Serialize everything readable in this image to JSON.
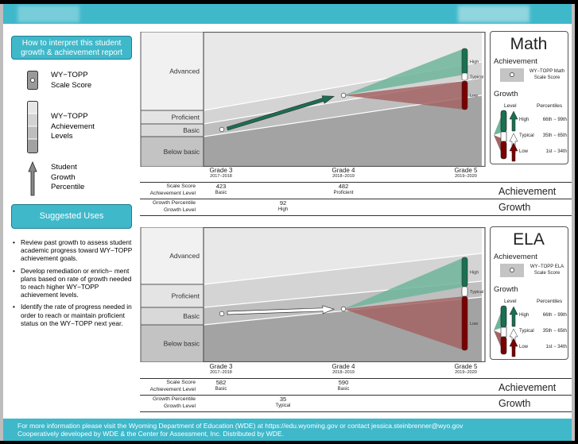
{
  "footer": {
    "line1": "For more information please visit the Wyoming Department of Education (WDE) at https://edu.wyoming.gov or contact jessica.steinbrenner@wyo.gov",
    "line2": "Cooperatively developed by WDE & the Center for Assessment, Inc. Distributed by WDE."
  },
  "sidebar": {
    "howto_title": "How to interpret this student growth & achievement report",
    "legend": [
      {
        "icon": "scale-score-icon",
        "label": "WY−TOPP\nScale Score"
      },
      {
        "icon": "achievement-levels-icon",
        "label": "WY−TOPP\nAchievement\nLevels"
      },
      {
        "icon": "growth-arrow-icon",
        "label": "Student\nGrowth\nPercentile"
      }
    ],
    "uses_title": "Suggested Uses",
    "bullets": [
      "Review past growth to assess student academic progress toward WY−TOPP achievement goals.",
      "Develop remediation or enrich− ment plans based on rate of growth needed to reach higher WY−TOPP achievement levels.",
      "Identify the rate of progress needed in order to reach or maintain proficient status on the WY−TOPP next year."
    ]
  },
  "colors": {
    "teal": "#3fb8ca",
    "high": "#1a7050",
    "low": "#7a0000",
    "high_fan": "#6fb59a",
    "low_fan": "#a56464"
  },
  "table_labels": {
    "scale_score": "Scale Score",
    "achievement_level": "Achievement Level",
    "growth_percentile": "Growth Percentile",
    "growth_level": "Growth Level",
    "achievement": "Achievement",
    "growth": "Growth"
  },
  "key_common": {
    "achievement": "Achievement",
    "growth": "Growth",
    "level": "Level",
    "percentiles": "Percentiles",
    "levels": [
      {
        "name": "High",
        "range": "66th − 99th"
      },
      {
        "name": "Typical",
        "range": "35th − 65th"
      },
      {
        "name": "Low",
        "range": "1st − 34th"
      }
    ]
  },
  "chart_data": [
    {
      "type": "line",
      "title": "Math",
      "key_scale_label": "WY−TOPP Math Scale Score",
      "levels": [
        "Advanced",
        "Proficient",
        "Basic",
        "Below basic"
      ],
      "grades": [
        {
          "grade": "Grade 3",
          "year": "2017−2018"
        },
        {
          "grade": "Grade 4",
          "year": "2018−2019"
        },
        {
          "grade": "Grade 5",
          "year": "2019−2020"
        }
      ],
      "scores": [
        {
          "score": "423",
          "level": "Basic"
        },
        {
          "score": "482",
          "level": "Proficient"
        }
      ],
      "growth": {
        "percentile": "92",
        "level": "High"
      },
      "projection_labels": [
        "High",
        "Typical",
        "Low"
      ]
    },
    {
      "type": "line",
      "title": "ELA",
      "key_scale_label": "WY−TOPP ELA Scale Score",
      "levels": [
        "Advanced",
        "Proficient",
        "Basic",
        "Below basic"
      ],
      "grades": [
        {
          "grade": "Grade 3",
          "year": "2017−2018"
        },
        {
          "grade": "Grade 4",
          "year": "2018−2019"
        },
        {
          "grade": "Grade 5",
          "year": "2019−2020"
        }
      ],
      "scores": [
        {
          "score": "582",
          "level": "Basic"
        },
        {
          "score": "590",
          "level": "Basic"
        }
      ],
      "growth": {
        "percentile": "35",
        "level": "Typical"
      },
      "projection_labels": [
        "High",
        "Typical",
        "Low"
      ]
    }
  ]
}
